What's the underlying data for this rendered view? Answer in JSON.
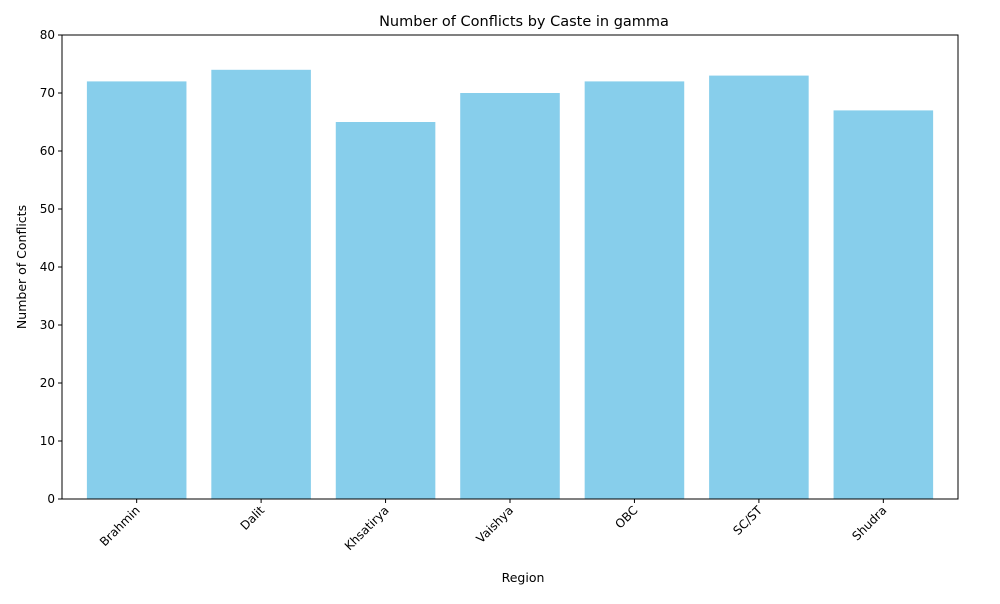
{
  "chart_data": {
    "type": "bar",
    "title": "Number of Conflicts by Caste in gamma",
    "xlabel": "Region",
    "ylabel": "Number of Conflicts",
    "categories": [
      "Brahmin",
      "Dalit",
      "Khsatirya",
      "Vaishya",
      "OBC",
      "SC/ST",
      "Shudra"
    ],
    "values": [
      72,
      74,
      65,
      70,
      72,
      73,
      67
    ],
    "ylim": [
      0,
      80
    ],
    "yticks": [
      0,
      10,
      20,
      30,
      40,
      50,
      60,
      70,
      80
    ],
    "grid": false,
    "legend": "none",
    "x_tick_rotation": 45,
    "bar_color": "#87ceeb"
  }
}
